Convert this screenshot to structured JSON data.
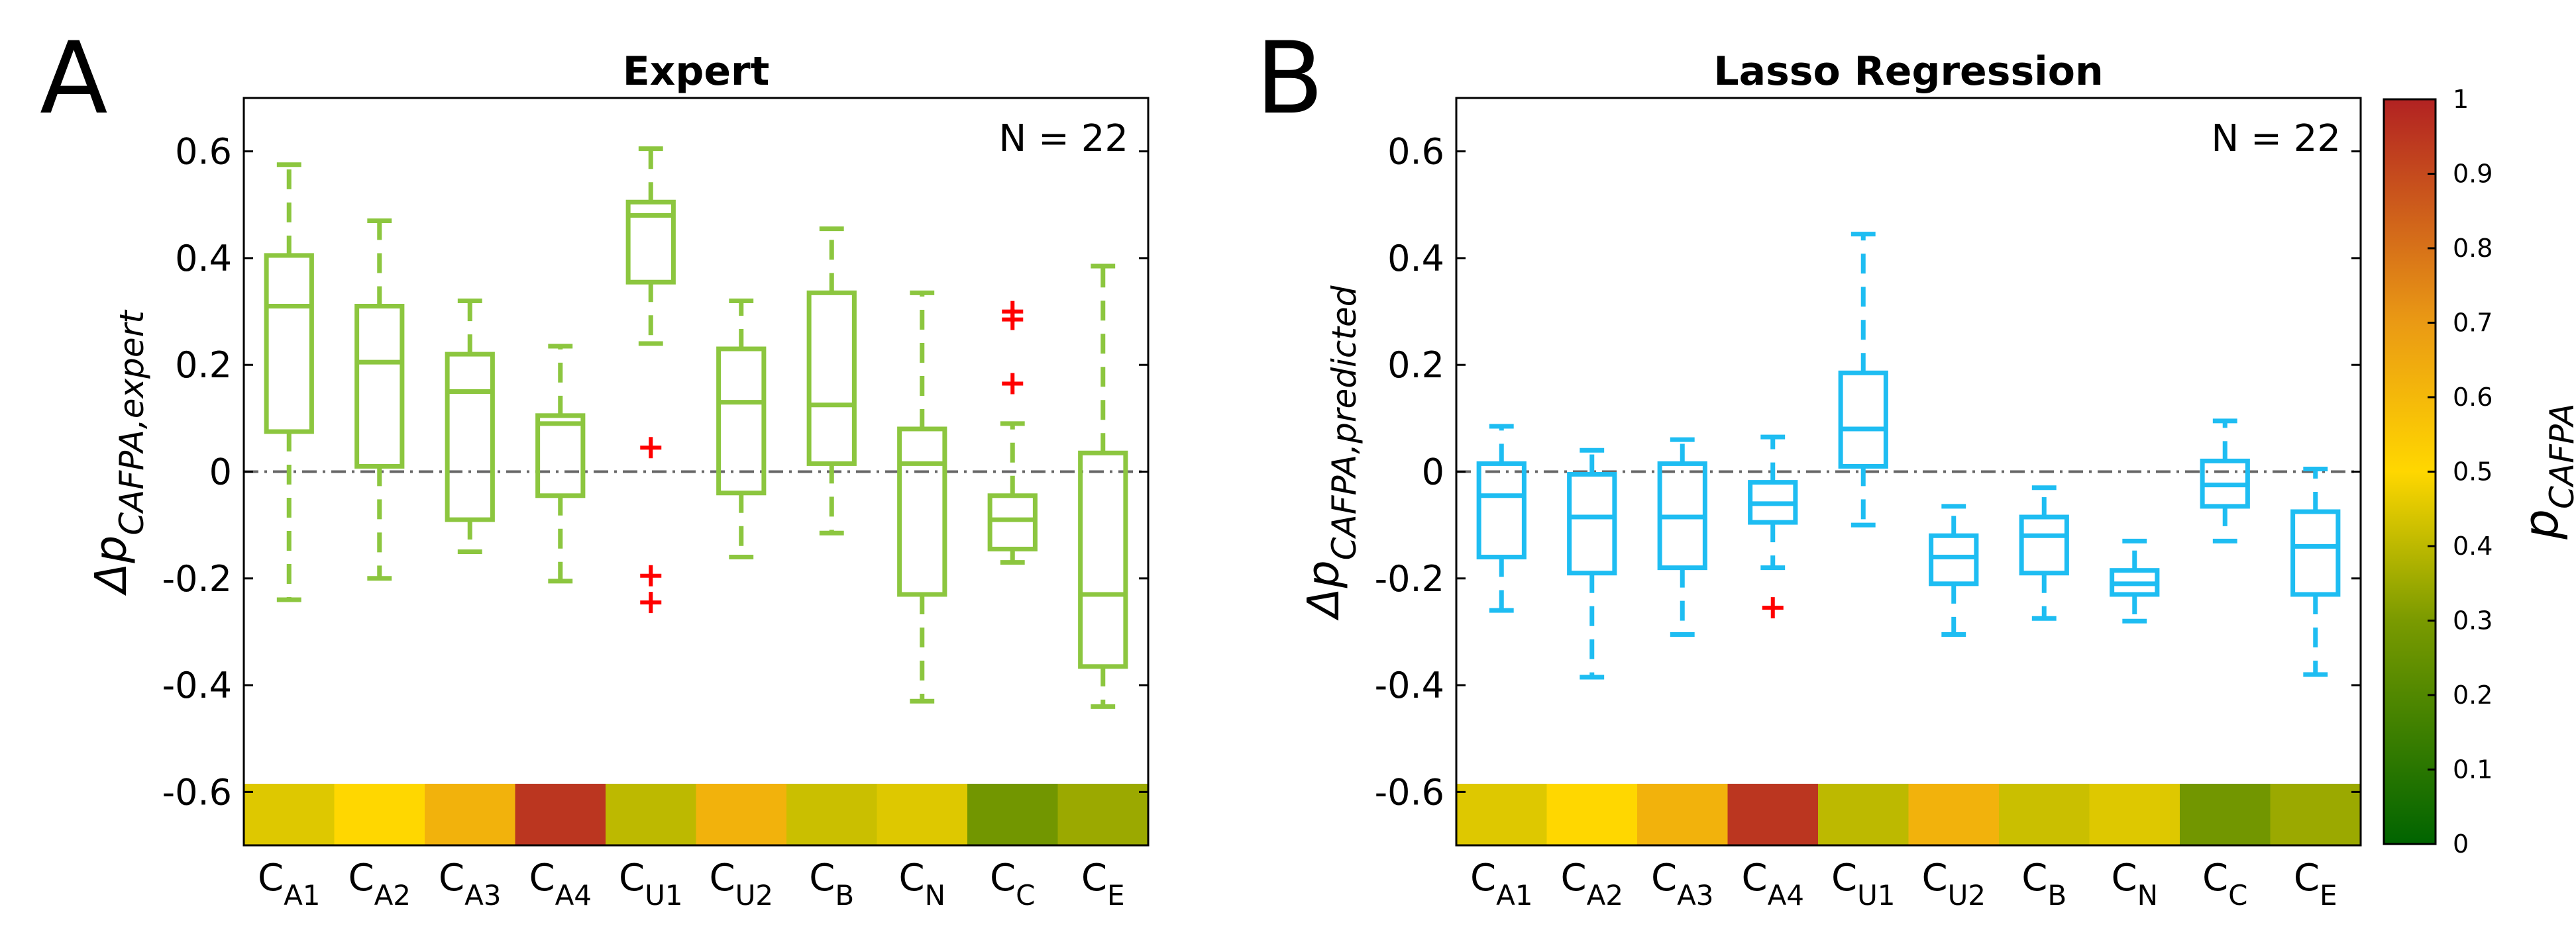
{
  "figure": {
    "colorbar": {
      "label_main": "p",
      "label_sub": "CAFPA",
      "ticks": [
        "0",
        "0.1",
        "0.2",
        "0.3",
        "0.4",
        "0.5",
        "0.6",
        "0.7",
        "0.8",
        "0.9",
        "1"
      ],
      "range": [
        0,
        1
      ]
    }
  },
  "chart_data": [
    {
      "type": "box",
      "panel_letter": "A",
      "title": "Expert",
      "annotation": "N = 22",
      "ylabel_main": "Δp",
      "ylabel_sub": "CAFPA,expert",
      "yticks": [
        "0.6",
        "0.4",
        "0.2",
        "0",
        "-0.2",
        "-0.4",
        "-0.6"
      ],
      "ylim": [
        -0.7,
        0.7
      ],
      "color": "#8cc63f",
      "outlier_color": "#ff0000",
      "reference_line": 0,
      "categories": [
        {
          "main": "C",
          "sub": "A1"
        },
        {
          "main": "C",
          "sub": "A2"
        },
        {
          "main": "C",
          "sub": "A3"
        },
        {
          "main": "C",
          "sub": "A4"
        },
        {
          "main": "C",
          "sub": "U1"
        },
        {
          "main": "C",
          "sub": "U2"
        },
        {
          "main": "C",
          "sub": "B"
        },
        {
          "main": "C",
          "sub": "N"
        },
        {
          "main": "C",
          "sub": "C"
        },
        {
          "main": "C",
          "sub": "E"
        }
      ],
      "p_cafpa": [
        0.45,
        0.5,
        0.62,
        0.95,
        0.4,
        0.62,
        0.42,
        0.45,
        0.28,
        0.35
      ],
      "boxes": [
        {
          "min": -0.24,
          "q1": 0.075,
          "median": 0.31,
          "q3": 0.405,
          "max": 0.575,
          "outliers": []
        },
        {
          "min": -0.2,
          "q1": 0.01,
          "median": 0.205,
          "q3": 0.31,
          "max": 0.47,
          "outliers": []
        },
        {
          "min": -0.15,
          "q1": -0.09,
          "median": 0.15,
          "q3": 0.22,
          "max": 0.32,
          "outliers": []
        },
        {
          "min": -0.205,
          "q1": -0.045,
          "median": 0.09,
          "q3": 0.105,
          "max": 0.235,
          "outliers": []
        },
        {
          "min": 0.24,
          "q1": 0.355,
          "median": 0.48,
          "q3": 0.505,
          "max": 0.605,
          "outliers": [
            0.045,
            -0.195,
            -0.245
          ]
        },
        {
          "min": -0.16,
          "q1": -0.04,
          "median": 0.13,
          "q3": 0.23,
          "max": 0.32,
          "outliers": []
        },
        {
          "min": -0.115,
          "q1": 0.015,
          "median": 0.125,
          "q3": 0.335,
          "max": 0.455,
          "outliers": []
        },
        {
          "min": -0.43,
          "q1": -0.23,
          "median": 0.015,
          "q3": 0.08,
          "max": 0.335,
          "outliers": []
        },
        {
          "min": -0.17,
          "q1": -0.145,
          "median": -0.09,
          "q3": -0.045,
          "max": 0.09,
          "outliers": [
            0.3,
            0.285,
            0.165
          ]
        },
        {
          "min": -0.44,
          "q1": -0.365,
          "median": -0.23,
          "q3": 0.035,
          "max": 0.385,
          "outliers": []
        }
      ]
    },
    {
      "type": "box",
      "panel_letter": "B",
      "title": "Lasso Regression",
      "annotation": "N = 22",
      "ylabel_main": "Δp",
      "ylabel_sub": "CAFPA,predicted",
      "yticks": [
        "0.6",
        "0.4",
        "0.2",
        "0",
        "-0.2",
        "-0.4",
        "-0.6"
      ],
      "ylim": [
        -0.7,
        0.7
      ],
      "color": "#1ebdf2",
      "outlier_color": "#ff0000",
      "reference_line": 0,
      "categories": [
        {
          "main": "C",
          "sub": "A1"
        },
        {
          "main": "C",
          "sub": "A2"
        },
        {
          "main": "C",
          "sub": "A3"
        },
        {
          "main": "C",
          "sub": "A4"
        },
        {
          "main": "C",
          "sub": "U1"
        },
        {
          "main": "C",
          "sub": "U2"
        },
        {
          "main": "C",
          "sub": "B"
        },
        {
          "main": "C",
          "sub": "N"
        },
        {
          "main": "C",
          "sub": "C"
        },
        {
          "main": "C",
          "sub": "E"
        }
      ],
      "p_cafpa": [
        0.45,
        0.5,
        0.62,
        0.95,
        0.4,
        0.62,
        0.42,
        0.45,
        0.28,
        0.35
      ],
      "boxes": [
        {
          "min": -0.26,
          "q1": -0.16,
          "median": -0.045,
          "q3": 0.015,
          "max": 0.085,
          "outliers": []
        },
        {
          "min": -0.385,
          "q1": -0.19,
          "median": -0.085,
          "q3": -0.005,
          "max": 0.04,
          "outliers": []
        },
        {
          "min": -0.305,
          "q1": -0.18,
          "median": -0.085,
          "q3": 0.015,
          "max": 0.06,
          "outliers": []
        },
        {
          "min": -0.18,
          "q1": -0.095,
          "median": -0.06,
          "q3": -0.02,
          "max": 0.065,
          "outliers": [
            -0.255
          ]
        },
        {
          "min": -0.1,
          "q1": 0.01,
          "median": 0.08,
          "q3": 0.185,
          "max": 0.445,
          "outliers": []
        },
        {
          "min": -0.305,
          "q1": -0.21,
          "median": -0.16,
          "q3": -0.12,
          "max": -0.065,
          "outliers": []
        },
        {
          "min": -0.275,
          "q1": -0.19,
          "median": -0.12,
          "q3": -0.085,
          "max": -0.03,
          "outliers": []
        },
        {
          "min": -0.28,
          "q1": -0.23,
          "median": -0.21,
          "q3": -0.185,
          "max": -0.13,
          "outliers": []
        },
        {
          "min": -0.13,
          "q1": -0.065,
          "median": -0.025,
          "q3": 0.02,
          "max": 0.095,
          "outliers": []
        },
        {
          "min": -0.38,
          "q1": -0.23,
          "median": -0.14,
          "q3": -0.075,
          "max": 0.005,
          "outliers": []
        }
      ]
    }
  ]
}
